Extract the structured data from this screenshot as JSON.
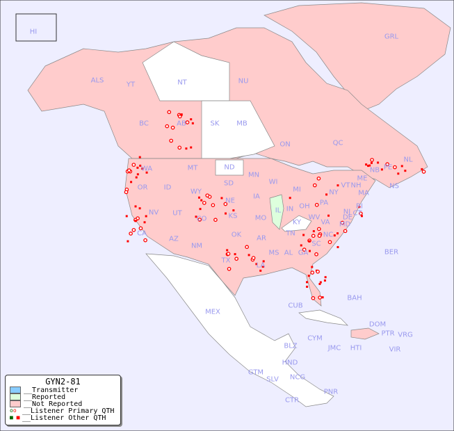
{
  "map_title": "GYN2-81",
  "colors": {
    "ocean": "#eeeeff",
    "transmitter": "#88ccff",
    "reported": "#ddffdd",
    "not_reported": "#ffcccc",
    "unlisted": "#ffffff",
    "listener_marker": "#ff0000",
    "label": "#9999ee"
  },
  "legend": {
    "title": "GYN2-81",
    "items": [
      {
        "label": "__Transmitter",
        "swatch": "#88ccff"
      },
      {
        "label": "__Reported",
        "swatch": "#ddffdd"
      },
      {
        "label": "__Not Reported",
        "swatch": "#ffcccc"
      },
      {
        "label": "__Listener Primary QTH",
        "marker": "circle"
      },
      {
        "label": "__Listener Other QTH",
        "marker": "square"
      }
    ]
  },
  "regions": [
    "HI",
    "ALS",
    "YT",
    "NT",
    "NU",
    "GRL",
    "BC",
    "AB",
    "SK",
    "MB",
    "ON",
    "QC",
    "NL",
    "NB",
    "PE",
    "NS",
    "WA",
    "OR",
    "ID",
    "MT",
    "WY",
    "ND",
    "SD",
    "NE",
    "MN",
    "IA",
    "KS",
    "MO",
    "WI",
    "MI",
    "IL",
    "IN",
    "OH",
    "KY",
    "TN",
    "NV",
    "UT",
    "CO",
    "CA",
    "AZ",
    "NM",
    "OK",
    "AR",
    "TX",
    "LA",
    "MS",
    "AL",
    "GA",
    "SC",
    "NC",
    "VA",
    "WV",
    "PA",
    "NY",
    "VT",
    "NH",
    "ME",
    "MA",
    "RI",
    "CT",
    "NJ",
    "DE",
    "MD",
    "BER",
    "MEX",
    "CUB",
    "BAH",
    "DOM",
    "PTR",
    "VRG",
    "CYM",
    "JMC",
    "HTI",
    "VIR",
    "BLZ",
    "HND",
    "GTM",
    "SLV",
    "NCG",
    "CTR",
    "PNR"
  ]
}
